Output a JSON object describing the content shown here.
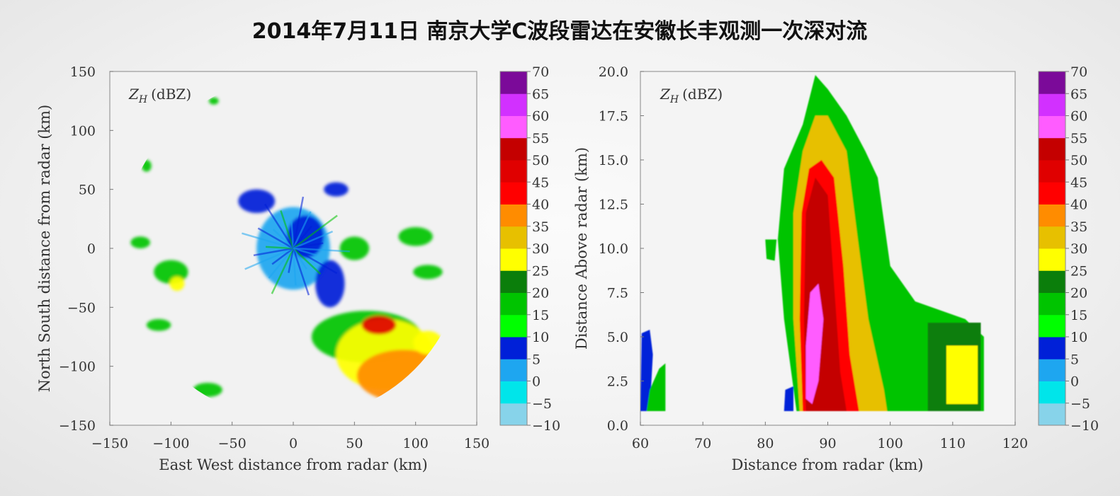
{
  "title": "2014年7月11日 南京大学C波段雷达在安徽长丰观测一次深对流",
  "colorbar": {
    "levels": [
      -10,
      -5,
      0,
      5,
      10,
      15,
      20,
      25,
      30,
      35,
      40,
      45,
      50,
      55,
      60,
      65,
      70
    ],
    "colors": [
      "#87d3ea",
      "#00e5ea",
      "#1ea6f0",
      "#0020d8",
      "#00ff00",
      "#00c400",
      "#0b7e0b",
      "#ffff00",
      "#e7c000",
      "#ff8c00",
      "#ff0000",
      "#e00000",
      "#c40000",
      "#ff5cff",
      "#d230ff",
      "#7b0a99"
    ],
    "tick_labels": [
      "−10",
      "−5",
      "0",
      "5",
      "10",
      "15",
      "20",
      "25",
      "30",
      "35",
      "40",
      "45",
      "50",
      "55",
      "60",
      "65",
      "70"
    ]
  },
  "chart_data": [
    {
      "type": "heatmap",
      "variable_label": "Z_H (dBZ)",
      "variable_symbol": "Z",
      "variable_subscript": "H",
      "variable_unit": "(dBZ)",
      "xlabel": "East West distance from radar (km)",
      "ylabel": "North South distance from radar (km)",
      "xlim": [
        -150,
        150
      ],
      "ylim": [
        -150,
        150
      ],
      "xticks": [
        -150,
        -100,
        -50,
        0,
        50,
        100,
        150
      ],
      "yticks": [
        -150,
        -100,
        -50,
        0,
        50,
        100,
        150
      ],
      "xtick_labels": [
        "−150",
        "−100",
        "−50",
        "0",
        "50",
        "100",
        "150"
      ],
      "ytick_labels": [
        "−150",
        "−100",
        "−50",
        "0",
        "50",
        "100",
        "150"
      ],
      "regions": [
        {
          "x": 0,
          "y": 0,
          "rx": 30,
          "ry": 35,
          "dbz": 0
        },
        {
          "x": 10,
          "y": 10,
          "rx": 15,
          "ry": 18,
          "dbz": 5
        },
        {
          "x": 30,
          "y": -30,
          "rx": 12,
          "ry": 20,
          "dbz": 5
        },
        {
          "x": -30,
          "y": 40,
          "rx": 15,
          "ry": 10,
          "dbz": 5
        },
        {
          "x": 35,
          "y": 50,
          "rx": 10,
          "ry": 6,
          "dbz": 5
        },
        {
          "x": 50,
          "y": 0,
          "rx": 12,
          "ry": 10,
          "dbz": 15
        },
        {
          "x": 60,
          "y": -75,
          "rx": 45,
          "ry": 22,
          "dbz": 15
        },
        {
          "x": 75,
          "y": -90,
          "rx": 40,
          "ry": 30,
          "dbz": 25
        },
        {
          "x": 90,
          "y": -108,
          "rx": 38,
          "ry": 22,
          "dbz": 35
        },
        {
          "x": 70,
          "y": -65,
          "rx": 14,
          "ry": 8,
          "dbz": 45
        },
        {
          "x": 110,
          "y": -80,
          "rx": 12,
          "ry": 10,
          "dbz": 25
        },
        {
          "x": 100,
          "y": 10,
          "rx": 14,
          "ry": 8,
          "dbz": 15
        },
        {
          "x": 110,
          "y": -20,
          "rx": 12,
          "ry": 6,
          "dbz": 15
        },
        {
          "x": -100,
          "y": -20,
          "rx": 14,
          "ry": 10,
          "dbz": 15
        },
        {
          "x": -95,
          "y": -30,
          "rx": 6,
          "ry": 6,
          "dbz": 25
        },
        {
          "x": -125,
          "y": 5,
          "rx": 8,
          "ry": 5,
          "dbz": 15
        },
        {
          "x": -110,
          "y": -65,
          "rx": 10,
          "ry": 5,
          "dbz": 15
        },
        {
          "x": -70,
          "y": -120,
          "rx": 12,
          "ry": 6,
          "dbz": 15
        },
        {
          "x": -120,
          "y": 70,
          "rx": 4,
          "ry": 5,
          "dbz": 15
        },
        {
          "x": -65,
          "y": 125,
          "rx": 4,
          "ry": 3,
          "dbz": 15
        }
      ]
    },
    {
      "type": "heatmap",
      "variable_label": "Z_H (dBZ)",
      "variable_symbol": "Z",
      "variable_subscript": "H",
      "variable_unit": "(dBZ)",
      "xlabel": "Distance from radar (km)",
      "ylabel": "Distance Above radar (km)",
      "xlim": [
        60,
        120
      ],
      "ylim": [
        0,
        20
      ],
      "xticks": [
        60,
        70,
        80,
        90,
        100,
        110,
        120
      ],
      "yticks": [
        0,
        2.5,
        5,
        7.5,
        10,
        12.5,
        15,
        17.5,
        20
      ],
      "xtick_labels": [
        "60",
        "70",
        "80",
        "90",
        "100",
        "110",
        "120"
      ],
      "ytick_labels": [
        "0.0",
        "2.5",
        "5.0",
        "7.5",
        "10.0",
        "12.5",
        "15.0",
        "17.5",
        "20.0"
      ],
      "profile_levels": [
        {
          "dbz": 15,
          "points": [
            [
              85,
              0.8
            ],
            [
              83,
              6
            ],
            [
              82,
              10.5
            ],
            [
              83,
              14.5
            ],
            [
              86,
              17
            ],
            [
              88,
              19.8
            ],
            [
              90,
              19
            ],
            [
              93,
              17.5
            ],
            [
              96,
              15.5
            ],
            [
              98,
              14
            ],
            [
              100,
              9
            ],
            [
              104,
              7
            ],
            [
              108,
              6.5
            ],
            [
              112,
              6
            ],
            [
              115,
              5
            ],
            [
              115,
              0.8
            ]
          ]
        },
        {
          "dbz": 30,
          "points": [
            [
              85.5,
              0.8
            ],
            [
              84.5,
              6
            ],
            [
              84.5,
              12
            ],
            [
              86,
              15.5
            ],
            [
              88,
              17.5
            ],
            [
              90,
              17.5
            ],
            [
              93,
              15.5
            ],
            [
              95,
              10
            ],
            [
              96.5,
              6
            ],
            [
              99,
              2
            ],
            [
              99.5,
              0.8
            ]
          ]
        },
        {
          "dbz": 40,
          "points": [
            [
              86,
              0.8
            ],
            [
              85.5,
              6
            ],
            [
              85.8,
              12
            ],
            [
              87,
              14.5
            ],
            [
              89,
              15
            ],
            [
              91,
              14
            ],
            [
              92.5,
              9
            ],
            [
              93.5,
              4
            ],
            [
              95,
              0.8
            ]
          ]
        },
        {
          "dbz": 50,
          "points": [
            [
              86.5,
              0.8
            ],
            [
              86.2,
              6
            ],
            [
              86.5,
              12
            ],
            [
              88,
              14
            ],
            [
              90,
              13
            ],
            [
              91,
              8
            ],
            [
              92,
              3
            ],
            [
              93,
              0.8
            ]
          ]
        },
        {
          "dbz": 55,
          "points": [
            [
              86.5,
              1.5
            ],
            [
              86.5,
              4.5
            ],
            [
              87.2,
              7.5
            ],
            [
              88.5,
              8
            ],
            [
              89.3,
              6
            ],
            [
              88.5,
              2.5
            ],
            [
              87.5,
              1.2
            ]
          ]
        }
      ],
      "anvil_cells": [
        {
          "dbz": 20,
          "points": [
            [
              106,
              5.8
            ],
            [
              114.5,
              5.8
            ],
            [
              114.5,
              0.8
            ],
            [
              106,
              0.8
            ]
          ]
        },
        {
          "dbz": 25,
          "points": [
            [
              109,
              4.5
            ],
            [
              114,
              4.5
            ],
            [
              114,
              1.2
            ],
            [
              109,
              1.2
            ]
          ]
        }
      ],
      "echo_patches": [
        {
          "dbz": 5,
          "points": [
            [
              60,
              0.8
            ],
            [
              61.5,
              0.8
            ],
            [
              62,
              4
            ],
            [
              61.5,
              5.4
            ],
            [
              60.2,
              5.2
            ]
          ]
        },
        {
          "dbz": 15,
          "points": [
            [
              61,
              0.8
            ],
            [
              64,
              0.8
            ],
            [
              64,
              3.5
            ],
            [
              63,
              3.2
            ],
            [
              61.5,
              2
            ]
          ]
        },
        {
          "dbz": 5,
          "points": [
            [
              83,
              0.8
            ],
            [
              84.5,
              0.8
            ],
            [
              84.5,
              2.2
            ],
            [
              83.2,
              2
            ]
          ]
        },
        {
          "dbz": 15,
          "points": [
            [
              80,
              10.5
            ],
            [
              81.8,
              10.5
            ],
            [
              81.5,
              9.3
            ],
            [
              80.2,
              9.4
            ]
          ]
        }
      ]
    }
  ]
}
